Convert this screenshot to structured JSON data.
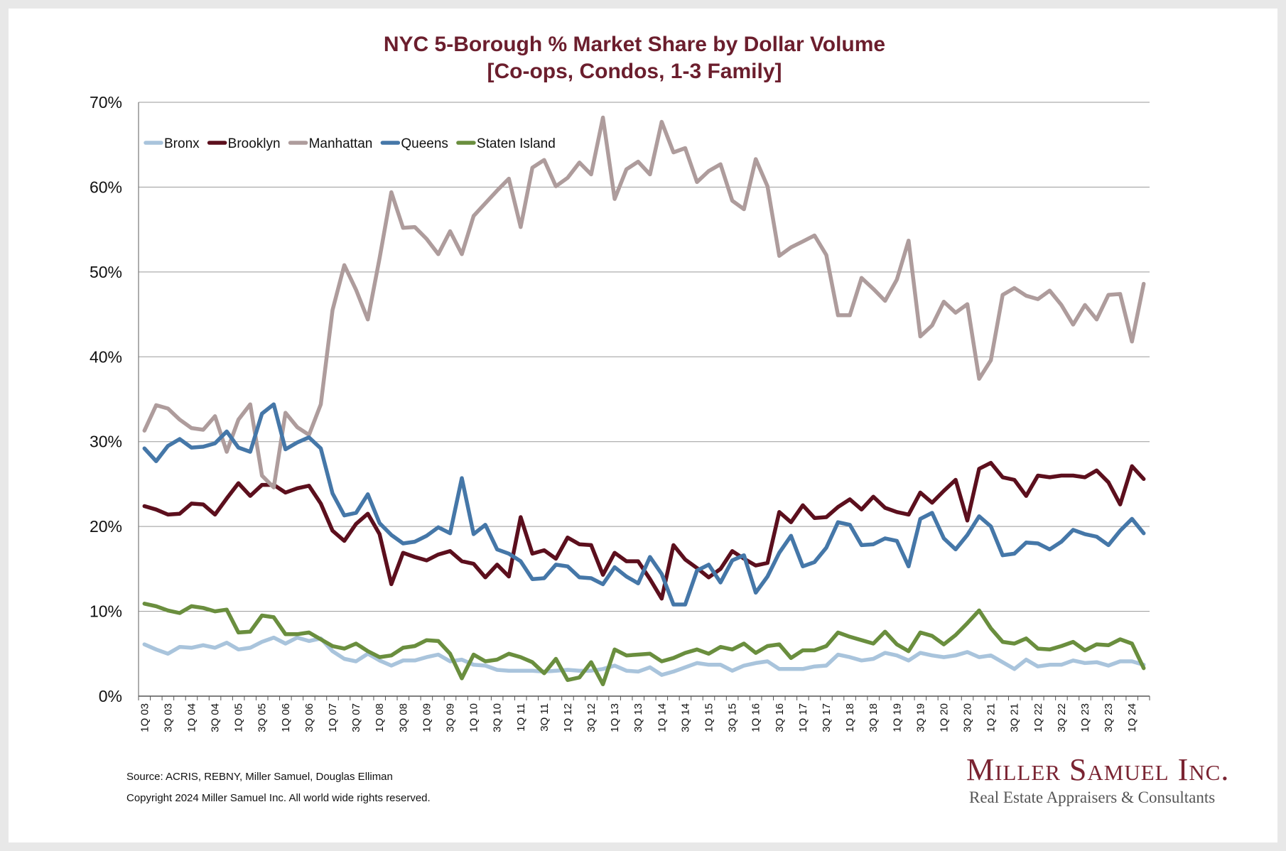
{
  "chart_data": {
    "type": "line",
    "title": "NYC 5-Borough % Market Share by Dollar Volume",
    "subtitle": "[Co-ops, Condos, 1-3 Family]",
    "xlabel": "",
    "ylabel": "",
    "ylim": [
      0,
      70
    ],
    "yticks": [
      "0%",
      "10%",
      "20%",
      "30%",
      "40%",
      "50%",
      "60%",
      "70%"
    ],
    "grid": true,
    "legend_position": "top-left",
    "x_tick_labels": [
      "1Q 03",
      "3Q 03",
      "1Q 04",
      "3Q 04",
      "1Q 05",
      "3Q 05",
      "1Q 06",
      "3Q 06",
      "1Q 07",
      "3Q 07",
      "1Q 08",
      "3Q 08",
      "1Q 09",
      "3Q 09",
      "1Q 10",
      "3Q 10",
      "1Q 11",
      "3Q 11",
      "1Q 12",
      "3Q 12",
      "1Q 13",
      "3Q 13",
      "1Q 14",
      "3Q 14",
      "1Q 15",
      "3Q 15",
      "1Q 16",
      "3Q 16",
      "1Q 17",
      "3Q 17",
      "1Q 18",
      "3Q 18",
      "1Q 19",
      "3Q 19",
      "1Q 20",
      "3Q 20",
      "1Q 21",
      "3Q 21",
      "1Q 22",
      "3Q 22",
      "1Q 23",
      "3Q 23",
      "1Q 24"
    ],
    "x": [
      "1Q 03",
      "2Q 03",
      "3Q 03",
      "4Q 03",
      "1Q 04",
      "2Q 04",
      "3Q 04",
      "4Q 04",
      "1Q 05",
      "2Q 05",
      "3Q 05",
      "4Q 05",
      "1Q 06",
      "2Q 06",
      "3Q 06",
      "4Q 06",
      "1Q 07",
      "2Q 07",
      "3Q 07",
      "4Q 07",
      "1Q 08",
      "2Q 08",
      "3Q 08",
      "4Q 08",
      "1Q 09",
      "2Q 09",
      "3Q 09",
      "4Q 09",
      "1Q 10",
      "2Q 10",
      "3Q 10",
      "4Q 10",
      "1Q 11",
      "2Q 11",
      "3Q 11",
      "4Q 11",
      "1Q 12",
      "2Q 12",
      "3Q 12",
      "4Q 12",
      "1Q 13",
      "2Q 13",
      "3Q 13",
      "4Q 13",
      "1Q 14",
      "2Q 14",
      "3Q 14",
      "4Q 14",
      "1Q 15",
      "2Q 15",
      "3Q 15",
      "4Q 15",
      "1Q 16",
      "2Q 16",
      "3Q 16",
      "4Q 16",
      "1Q 17",
      "2Q 17",
      "3Q 17",
      "4Q 17",
      "1Q 18",
      "2Q 18",
      "3Q 18",
      "4Q 18",
      "1Q 19",
      "2Q 19",
      "3Q 19",
      "4Q 19",
      "1Q 20",
      "2Q 20",
      "3Q 20",
      "4Q 20",
      "1Q 21",
      "2Q 21",
      "3Q 21",
      "4Q 21",
      "1Q 22",
      "2Q 22",
      "3Q 22",
      "4Q 22",
      "1Q 23",
      "2Q 23",
      "3Q 23",
      "4Q 23",
      "1Q 24",
      "2Q 24"
    ],
    "series": [
      {
        "name": "Bronx",
        "color": "#a9c4dc",
        "values": [
          6.1,
          5.5,
          5.0,
          5.8,
          5.7,
          6.0,
          5.7,
          6.3,
          5.5,
          5.7,
          6.4,
          6.9,
          6.2,
          6.9,
          6.5,
          6.8,
          5.3,
          4.4,
          4.1,
          5.0,
          4.2,
          3.6,
          4.2,
          4.2,
          4.6,
          4.9,
          4.1,
          4.3,
          3.7,
          3.6,
          3.1,
          3.0,
          3.0,
          3.0,
          2.9,
          3.0,
          3.1,
          3.0,
          3.0,
          3.2,
          3.6,
          3.0,
          2.9,
          3.4,
          2.5,
          2.9,
          3.4,
          3.9,
          3.7,
          3.7,
          3.0,
          3.6,
          3.9,
          4.1,
          3.2,
          3.2,
          3.2,
          3.5,
          3.6,
          4.9,
          4.6,
          4.2,
          4.4,
          5.1,
          4.8,
          4.2,
          5.1,
          4.8,
          4.6,
          4.8,
          5.2,
          4.6,
          4.8,
          4.0,
          3.2,
          4.3,
          3.5,
          3.7,
          3.7,
          4.2,
          3.9,
          4.0,
          3.6,
          4.1,
          4.1,
          3.7
        ]
      },
      {
        "name": "Brooklyn",
        "color": "#5c0f1d",
        "values": [
          22.4,
          22.0,
          21.4,
          21.5,
          22.7,
          22.6,
          21.4,
          23.3,
          25.1,
          23.6,
          24.9,
          24.9,
          24.0,
          24.5,
          24.8,
          22.7,
          19.5,
          18.3,
          20.3,
          21.5,
          19.1,
          13.2,
          16.9,
          16.4,
          16.0,
          16.7,
          17.1,
          15.9,
          15.6,
          14.0,
          15.5,
          14.1,
          21.1,
          16.8,
          17.2,
          16.2,
          18.7,
          17.9,
          17.8,
          14.3,
          16.9,
          15.9,
          15.9,
          13.8,
          11.5,
          17.8,
          16.1,
          15.1,
          14.0,
          15.0,
          17.1,
          16.2,
          15.4,
          15.7,
          21.7,
          20.5,
          22.5,
          21.0,
          21.1,
          22.3,
          23.2,
          22.0,
          23.5,
          22.2,
          21.7,
          21.4,
          24.0,
          22.8,
          24.2,
          25.5,
          20.7,
          26.8,
          27.5,
          25.8,
          25.5,
          23.6,
          26.0,
          25.8,
          26.0,
          26.0,
          25.8,
          26.6,
          25.2,
          22.6,
          27.1,
          25.6
        ]
      },
      {
        "name": "Manhattan",
        "color": "#ae9c9c",
        "values": [
          31.3,
          34.3,
          33.9,
          32.6,
          31.6,
          31.4,
          33.0,
          28.8,
          32.6,
          34.4,
          26.0,
          24.6,
          33.4,
          31.7,
          30.8,
          34.4,
          45.5,
          50.8,
          47.9,
          44.4,
          51.6,
          59.4,
          55.2,
          55.3,
          53.9,
          52.1,
          54.8,
          52.1,
          56.6,
          58.1,
          59.6,
          61.0,
          55.3,
          62.3,
          63.2,
          60.1,
          61.1,
          62.9,
          61.5,
          68.2,
          58.6,
          62.1,
          63.0,
          61.5,
          67.7,
          64.1,
          64.6,
          60.6,
          61.9,
          62.7,
          58.4,
          57.4,
          63.3,
          60.1,
          51.9,
          52.9,
          53.6,
          54.3,
          52.0,
          44.9,
          44.9,
          49.3,
          48.0,
          46.6,
          49.1,
          53.7,
          42.4,
          43.7,
          46.5,
          45.2,
          46.2,
          37.4,
          39.6,
          47.3,
          48.1,
          47.2,
          46.8,
          47.8,
          46.1,
          43.8,
          46.1,
          44.4,
          47.3,
          47.4,
          41.8,
          48.6
        ]
      },
      {
        "name": "Queens",
        "color": "#4577a8",
        "values": [
          29.2,
          27.7,
          29.5,
          30.3,
          29.3,
          29.4,
          29.8,
          31.2,
          29.3,
          28.8,
          33.3,
          34.4,
          29.1,
          29.9,
          30.5,
          29.2,
          23.9,
          21.3,
          21.6,
          23.8,
          20.4,
          19.0,
          18.0,
          18.2,
          18.9,
          19.9,
          19.2,
          25.7,
          19.1,
          20.2,
          17.3,
          16.8,
          15.9,
          13.8,
          13.9,
          15.5,
          15.3,
          14.0,
          13.9,
          13.2,
          15.2,
          14.1,
          13.3,
          16.4,
          14.4,
          10.8,
          10.8,
          14.8,
          15.5,
          13.4,
          16.0,
          16.6,
          12.2,
          14.1,
          16.9,
          18.9,
          15.3,
          15.8,
          17.5,
          20.5,
          20.2,
          17.8,
          17.9,
          18.6,
          18.3,
          15.3,
          20.9,
          21.6,
          18.6,
          17.3,
          19.0,
          21.2,
          20.0,
          16.6,
          16.8,
          18.1,
          18.0,
          17.3,
          18.2,
          19.6,
          19.1,
          18.8,
          17.8,
          19.5,
          20.9,
          19.2
        ]
      },
      {
        "name": "Staten Island",
        "color": "#6a8e3e",
        "values": [
          10.9,
          10.6,
          10.1,
          9.8,
          10.6,
          10.4,
          10.0,
          10.2,
          7.5,
          7.6,
          9.5,
          9.3,
          7.3,
          7.3,
          7.5,
          6.7,
          5.9,
          5.6,
          6.2,
          5.3,
          4.6,
          4.8,
          5.7,
          5.9,
          6.6,
          6.5,
          5.0,
          2.1,
          4.9,
          4.1,
          4.3,
          5.0,
          4.6,
          4.0,
          2.7,
          4.4,
          1.9,
          2.2,
          4.0,
          1.4,
          5.5,
          4.8,
          4.9,
          5.0,
          4.1,
          4.5,
          5.1,
          5.5,
          5.0,
          5.8,
          5.5,
          6.2,
          5.1,
          5.9,
          6.1,
          4.5,
          5.4,
          5.4,
          5.9,
          7.5,
          7.0,
          6.6,
          6.2,
          7.6,
          6.1,
          5.3,
          7.5,
          7.1,
          6.1,
          7.2,
          8.6,
          10.1,
          8.0,
          6.4,
          6.2,
          6.8,
          5.6,
          5.5,
          5.9,
          6.4,
          5.4,
          6.1,
          6.0,
          6.7,
          6.2,
          3.3
        ]
      }
    ]
  },
  "footer": {
    "source": "Source: ACRIS, REBNY, Miller Samuel, Douglas Elliman",
    "copyright": "Copyright 2024 Miller Samuel Inc.  All world wide rights reserved."
  },
  "logo": {
    "name": "Miller Samuel Inc.",
    "tagline": "Real Estate Appraisers & Consultants",
    "color": "#7a2432"
  }
}
